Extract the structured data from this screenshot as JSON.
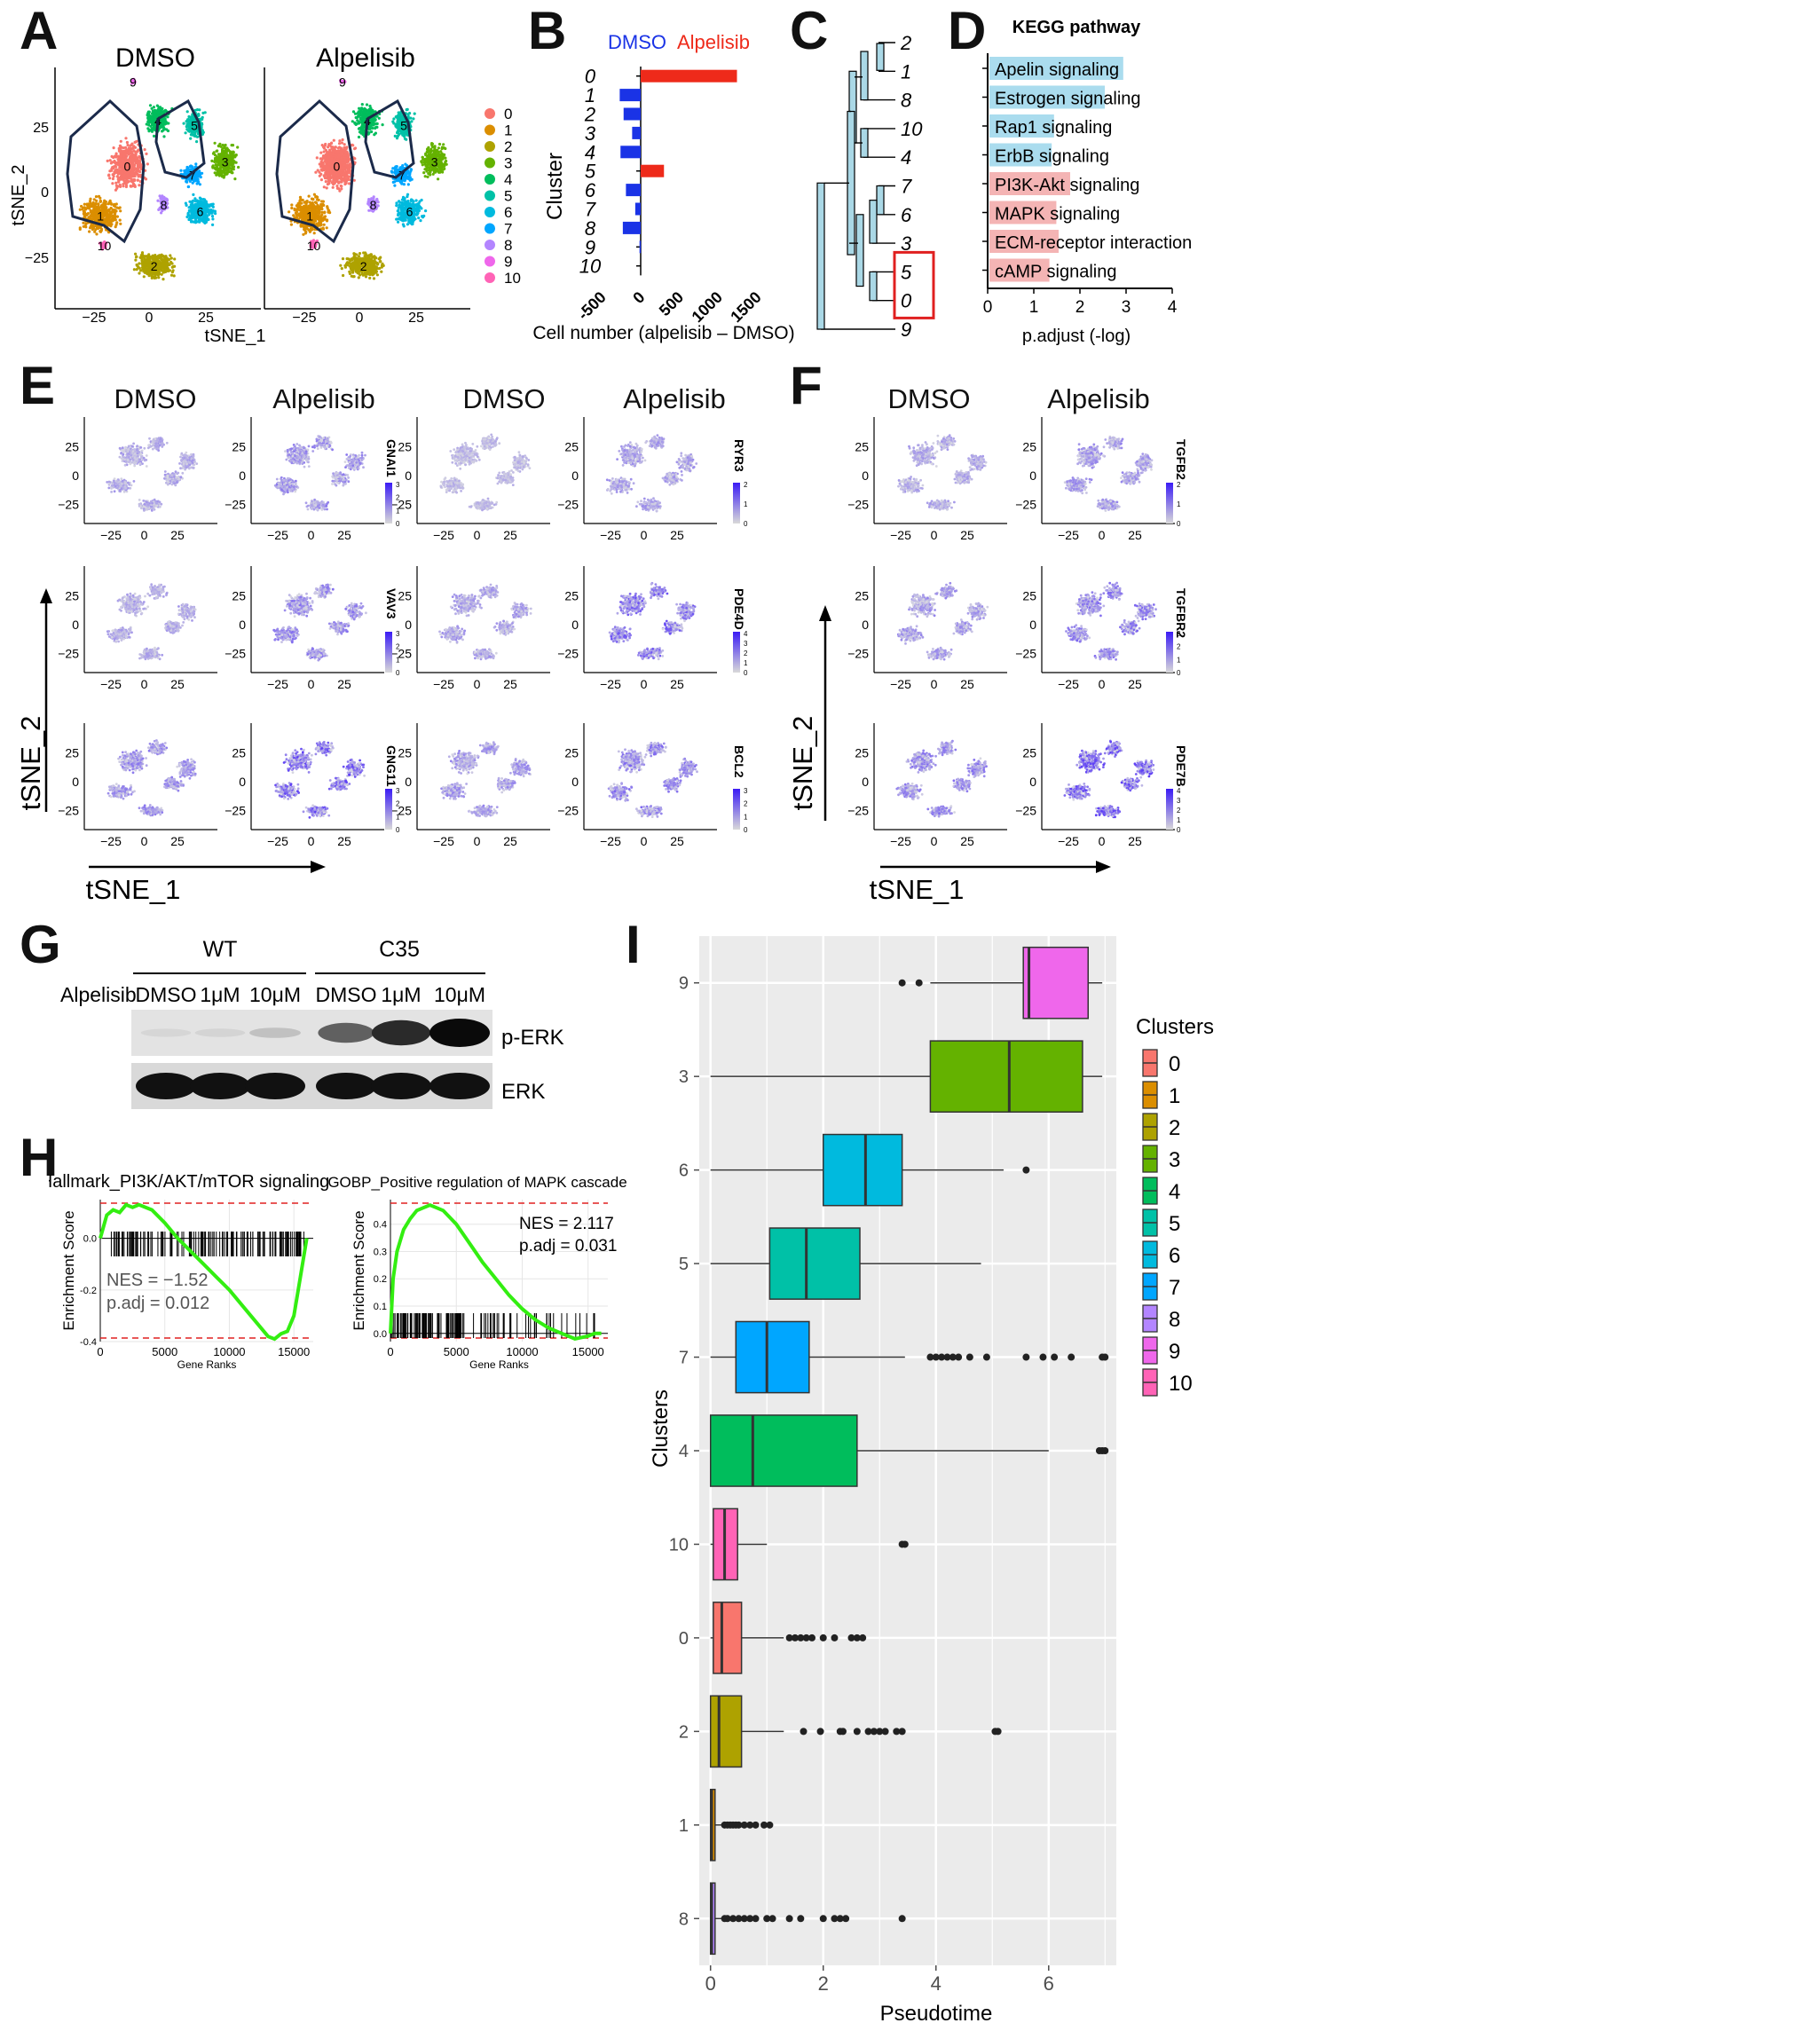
{
  "panel_labels": [
    "A",
    "B",
    "C",
    "D",
    "E",
    "F",
    "G",
    "H",
    "I"
  ],
  "panelA": {
    "titles": [
      "DMSO",
      "Alpelisib"
    ],
    "xlabel": "tSNE_1",
    "ylabel": "tSNE_2",
    "xticks": [
      "−25",
      "0",
      "25"
    ],
    "yticks": [
      "25",
      "0",
      "−25"
    ],
    "legend": [
      "0",
      "1",
      "2",
      "3",
      "4",
      "5",
      "6",
      "7",
      "8",
      "9",
      "10"
    ],
    "cluster_colors": [
      "#f8766d",
      "#db8e00",
      "#aea200",
      "#64b200",
      "#00bd5c",
      "#00c1a7",
      "#00bade",
      "#00a6ff",
      "#b385ff",
      "#ef67eb",
      "#ff63b6"
    ],
    "cluster_labels": [
      "0",
      "1",
      "2",
      "3",
      "4",
      "5",
      "6",
      "7",
      "8",
      "9",
      "10"
    ]
  },
  "chart_data": [
    {
      "id": "B",
      "type": "bar",
      "orientation": "horizontal",
      "legend": [
        "DMSO",
        "Alpelisib"
      ],
      "legend_colors": [
        "#1a33e6",
        "#ee2a1a"
      ],
      "ylabel": "Cluster",
      "xlabel": "Cell number (alpelisib – DMSO)",
      "categories": [
        "0",
        "1",
        "2",
        "3",
        "4",
        "5",
        "6",
        "7",
        "8",
        "9",
        "10"
      ],
      "values": [
        1240,
        -270,
        -220,
        -110,
        -260,
        300,
        -190,
        -70,
        -230,
        -15,
        0
      ],
      "xticks": [
        "-500",
        "0",
        "500",
        "1000",
        "1500"
      ],
      "xlim": [
        -500,
        1500
      ]
    },
    {
      "id": "D",
      "type": "bar",
      "orientation": "horizontal",
      "title": "KEGG pathway",
      "xlabel": "p.adjust (-log)",
      "categories": [
        "Apelin signaling",
        "Estrogen signaling",
        "Rap1 signaling",
        "ErbB signaling",
        "PI3K-Akt signaling",
        "MAPK signaling",
        "ECM-receptor interaction",
        "cAMP signaling"
      ],
      "values": [
        2.9,
        2.5,
        1.4,
        1.35,
        1.75,
        1.45,
        1.5,
        1.3
      ],
      "colors": [
        "#aadcee",
        "#aadcee",
        "#aadcee",
        "#aadcee",
        "#f4b4b4",
        "#f4b4b4",
        "#f4b4b4",
        "#f4b4b4"
      ],
      "xticks": [
        "0",
        "1",
        "2",
        "3",
        "4"
      ],
      "xlim": [
        0,
        4
      ]
    },
    {
      "id": "I",
      "type": "boxplot",
      "xlabel": "Pseudotime",
      "ylabel": "Clusters",
      "legend_title": "Clusters",
      "xticks": [
        "0",
        "2",
        "4",
        "6"
      ],
      "xlim": [
        -0.2,
        7.2
      ],
      "rows": [
        "9",
        "3",
        "6",
        "5",
        "7",
        "4",
        "10",
        "0",
        "2",
        "1",
        "8"
      ],
      "series": [
        {
          "cluster": "9",
          "q1": 5.55,
          "median": 5.65,
          "q3": 6.7,
          "wmin": 3.9,
          "wmax": 6.95
        },
        {
          "cluster": "3",
          "q1": 3.9,
          "median": 5.3,
          "q3": 6.6,
          "wmin": 0,
          "wmax": 6.95
        },
        {
          "cluster": "6",
          "q1": 2.0,
          "median": 2.75,
          "q3": 3.4,
          "wmin": 0,
          "wmax": 5.2
        },
        {
          "cluster": "5",
          "q1": 1.05,
          "median": 1.7,
          "q3": 2.65,
          "wmin": 0,
          "wmax": 4.8
        },
        {
          "cluster": "7",
          "q1": 0.45,
          "median": 1.0,
          "q3": 1.75,
          "wmin": 0,
          "wmax": 3.45
        },
        {
          "cluster": "4",
          "q1": 0.0,
          "median": 0.75,
          "q3": 2.6,
          "wmin": 0,
          "wmax": 6.0
        },
        {
          "cluster": "10",
          "q1": 0.05,
          "median": 0.25,
          "q3": 0.48,
          "wmin": 0,
          "wmax": 1.0
        },
        {
          "cluster": "0",
          "q1": 0.05,
          "median": 0.2,
          "q3": 0.55,
          "wmin": 0,
          "wmax": 1.3
        },
        {
          "cluster": "2",
          "q1": 0.0,
          "median": 0.15,
          "q3": 0.55,
          "wmin": 0,
          "wmax": 1.3
        },
        {
          "cluster": "1",
          "q1": 0.0,
          "median": 0.02,
          "q3": 0.08,
          "wmin": 0,
          "wmax": 0.2
        },
        {
          "cluster": "8",
          "q1": 0.0,
          "median": 0.02,
          "q3": 0.08,
          "wmin": 0,
          "wmax": 0.2
        }
      ]
    },
    {
      "id": "H1",
      "type": "line",
      "title": "Hallmark_PI3K/AKT/mTOR signaling",
      "ylabel": "Enrichment Score",
      "xlabel": "Gene Ranks",
      "xticks": [
        "0",
        "5000",
        "10000",
        "15000"
      ],
      "yticks": [
        "0.0",
        "-0.2",
        "-0.4"
      ],
      "annotation": [
        "NES = −1.52",
        "p.adj = 0.012"
      ],
      "x": [
        0,
        500,
        1000,
        1500,
        2000,
        2500,
        3000,
        4000,
        5000,
        6000,
        7000,
        8000,
        9000,
        10000,
        11000,
        12000,
        13000,
        13500,
        14000,
        14500,
        15000,
        15500,
        16000
      ],
      "y": [
        0.0,
        0.09,
        0.11,
        0.1,
        0.13,
        0.12,
        0.13,
        0.11,
        0.06,
        0.0,
        -0.05,
        -0.1,
        -0.15,
        -0.2,
        -0.26,
        -0.32,
        -0.38,
        -0.39,
        -0.37,
        -0.36,
        -0.3,
        -0.15,
        0.0
      ]
    },
    {
      "id": "H2",
      "type": "line",
      "title": "GOBP_Positive regulation of MAPK cascade",
      "ylabel": "Enrichment Score",
      "xlabel": "Gene Ranks",
      "xticks": [
        "0",
        "5000",
        "10000",
        "15000"
      ],
      "yticks": [
        "0.4",
        "0.3",
        "0.2",
        "0.1",
        "0.0"
      ],
      "annotation": [
        "NES = 2.117",
        "p.adj = 0.031"
      ],
      "x": [
        0,
        200,
        500,
        1000,
        1500,
        2000,
        2500,
        3000,
        3500,
        4000,
        5000,
        6000,
        7000,
        8000,
        9000,
        10000,
        11000,
        12000,
        13000,
        14000,
        15000,
        15500,
        16000
      ],
      "y": [
        0.0,
        0.2,
        0.3,
        0.38,
        0.42,
        0.45,
        0.46,
        0.47,
        0.46,
        0.45,
        0.4,
        0.33,
        0.26,
        0.2,
        0.14,
        0.09,
        0.05,
        0.02,
        0.0,
        -0.02,
        -0.01,
        0.0,
        0.0
      ]
    }
  ],
  "panelC": {
    "leaves": [
      "2",
      "1",
      "8",
      "10",
      "4",
      "7",
      "6",
      "3",
      "5",
      "0",
      "9"
    ]
  },
  "panelE": {
    "col_titles": [
      "DMSO",
      "Alpelisib",
      "DMSO",
      "Alpelisib"
    ],
    "genes_left": [
      "GNAI1",
      "VAV3",
      "GNG11"
    ],
    "genes_right": [
      "RYR3",
      "PDE4D",
      "BCL2"
    ],
    "scales_left": [
      [
        "3",
        "2",
        "1",
        "0"
      ],
      [
        "3",
        "2",
        "1",
        "0"
      ],
      [
        "3",
        "2",
        "1",
        "0"
      ]
    ],
    "scales_right": [
      [
        "2",
        "1",
        "0"
      ],
      [
        "4",
        "3",
        "2",
        "1",
        "0"
      ],
      [
        "3",
        "2",
        "1",
        "0"
      ]
    ],
    "xlabel": "tSNE_1",
    "ylabel": "tSNE_2",
    "xticks": [
      "−25",
      "0",
      "25"
    ],
    "yticks": [
      "25",
      "0",
      "−25"
    ]
  },
  "panelF": {
    "col_titles": [
      "DMSO",
      "Alpelisib"
    ],
    "genes": [
      "TGFB2",
      "TGFBR2",
      "PDE7B"
    ],
    "scales": [
      [
        "2",
        "1",
        "0"
      ],
      [
        "3",
        "2",
        "1",
        "0"
      ],
      [
        "4",
        "3",
        "2",
        "1",
        "0"
      ]
    ],
    "xlabel": "tSNE_1",
    "ylabel": "tSNE_2"
  },
  "panelG": {
    "groups": [
      "WT",
      "C35"
    ],
    "treatment_label": "Alpelisib",
    "lanes": [
      "DMSO",
      "1μM",
      "10μM",
      "DMSO",
      "1μM",
      "10μM"
    ],
    "bands": [
      "p-ERK",
      "ERK"
    ],
    "perk_intensity": [
      0.05,
      0.06,
      0.15,
      0.6,
      0.85,
      1.0
    ],
    "erk_intensity": [
      1.0,
      1.0,
      1.0,
      1.0,
      1.0,
      1.0
    ]
  },
  "panelI_legend": [
    "0",
    "1",
    "2",
    "3",
    "4",
    "5",
    "6",
    "7",
    "8",
    "9",
    "10"
  ]
}
